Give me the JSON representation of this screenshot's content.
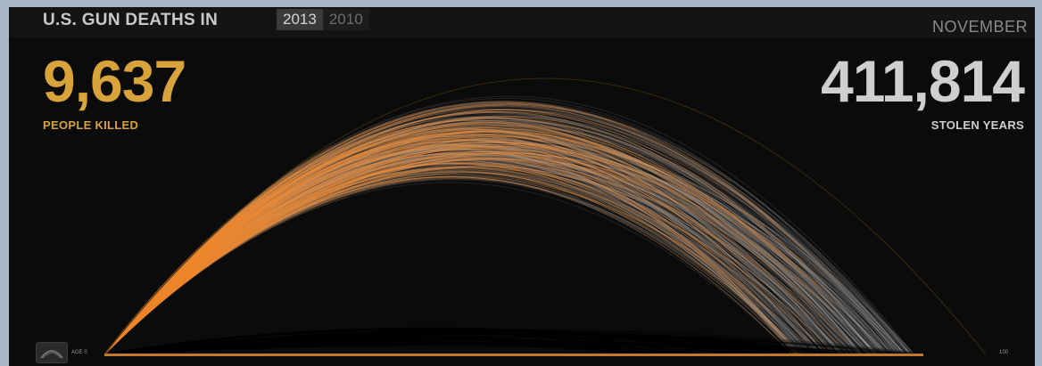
{
  "header": {
    "title": "U.S. GUN DEATHS IN",
    "years": [
      {
        "label": "2013",
        "active": true
      },
      {
        "label": "2010",
        "active": false
      }
    ],
    "month": "NOVEMBER"
  },
  "stats": {
    "killed_value": "9,637",
    "killed_label": "PEOPLE KILLED",
    "stolen_value": "411,814",
    "stolen_label": "STOLEN YEARS"
  },
  "axis": {
    "start_label": "AGE 0",
    "end_label": "100"
  },
  "colors": {
    "killed": "#d9a33c",
    "lived": "#f08a2e",
    "stolen": "#cfcfcf",
    "years_text": "#cfcfcf",
    "background": "#0b0b0b"
  },
  "chart_data": {
    "type": "arc",
    "title": "U.S. GUN DEATHS IN 2013",
    "xlabel": "",
    "ylabel": "",
    "xlim": [
      0,
      100
    ],
    "people_killed": 9637,
    "stolen_years": 411814,
    "series": [
      {
        "name": "",
        "color": "#f08a2e"
      },
      {
        "name": "",
        "color": "#cfcfcf"
      }
    ]
  }
}
